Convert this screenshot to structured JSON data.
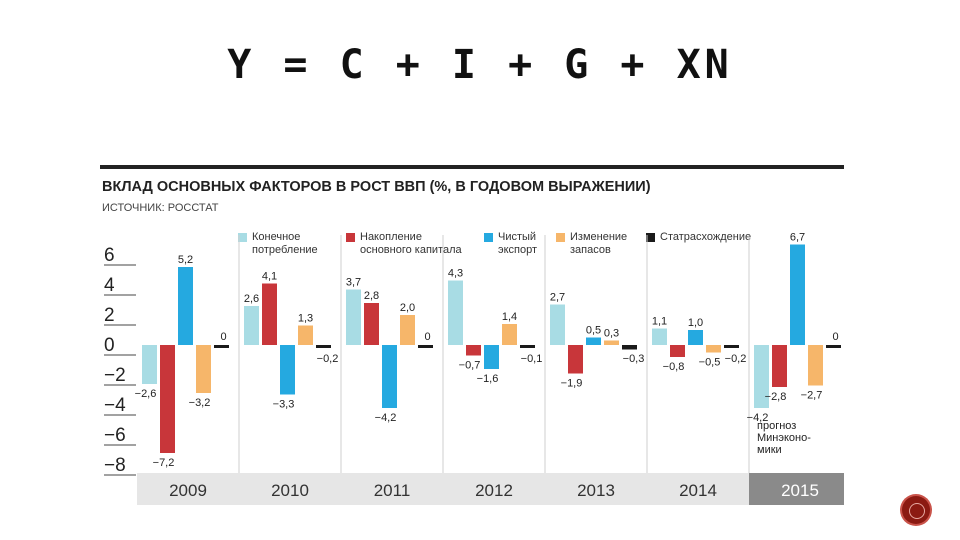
{
  "slide": {
    "title": "Y = C + I + G + XN"
  },
  "colors": {
    "consumption": "#a8dce4",
    "capital": "#c8363a",
    "export": "#25a9e0",
    "inventory": "#f6b66a",
    "discrepancy": "#1a1a1a",
    "footer_bg": "#e6e6e6",
    "footer_highlight": "#8a8a8a"
  },
  "chart_data": {
    "type": "bar",
    "title": "ВКЛАД ОСНОВНЫХ ФАКТОРОВ В РОСТ ВВП (%, В ГОДОВОМ ВЫРАЖЕНИИ)",
    "source": "ИСТОЧНИК: РОССТАТ",
    "categories": [
      "2009",
      "2010",
      "2011",
      "2012",
      "2013",
      "2014",
      "2015"
    ],
    "highlight_category": "2015",
    "ylim": [
      -8.4,
      7.2
    ],
    "yticks": [
      {
        "value": 6,
        "label": "6"
      },
      {
        "value": 4,
        "label": "4"
      },
      {
        "value": 2,
        "label": "2"
      },
      {
        "value": 0,
        "label": "0"
      },
      {
        "value": -2,
        "label": "−2"
      },
      {
        "value": -4,
        "label": "−4"
      },
      {
        "value": -6,
        "label": "−6"
      },
      {
        "value": -8,
        "label": "−8"
      }
    ],
    "legend_position": "top",
    "series": [
      {
        "name": "Конечное потребление",
        "name_lines": [
          "Конечное",
          "потребление"
        ],
        "color_key": "consumption",
        "values": [
          -2.6,
          2.6,
          3.7,
          4.3,
          2.7,
          1.1,
          -4.2
        ],
        "labels": [
          "−2,6",
          "2,6",
          "3,7",
          "4,3",
          "2,7",
          "1,1",
          "−4,2"
        ]
      },
      {
        "name": "Накопление основного капитала",
        "name_lines": [
          "Накопление",
          "основного капитала"
        ],
        "color_key": "capital",
        "values": [
          -7.2,
          4.1,
          2.8,
          -0.7,
          -1.9,
          -0.8,
          -2.8
        ],
        "labels": [
          "−7,2",
          "4,1",
          "2,8",
          "−0,7",
          "−1,9",
          "−0,8",
          "−2,8"
        ]
      },
      {
        "name": "Чистый экспорт",
        "name_lines": [
          "Чистый",
          "экспорт"
        ],
        "color_key": "export",
        "values": [
          5.2,
          -3.3,
          -4.2,
          -1.6,
          0.5,
          1.0,
          6.7
        ],
        "labels": [
          "5,2",
          "−3,3",
          "−4,2",
          "−1,6",
          "0,5",
          "1,0",
          "6,7"
        ]
      },
      {
        "name": "Изменение запасов",
        "name_lines": [
          "Изменение",
          "запасов"
        ],
        "color_key": "inventory",
        "values": [
          -3.2,
          1.3,
          2.0,
          1.4,
          0.3,
          -0.5,
          -2.7
        ],
        "labels": [
          "−3,2",
          "1,3",
          "2,0",
          "1,4",
          "0,3",
          "−0,5",
          "−2,7"
        ]
      },
      {
        "name": "Статрасхождение",
        "name_lines": [
          "Статрасхождение"
        ],
        "color_key": "discrepancy",
        "values": [
          0,
          -0.2,
          0,
          -0.1,
          -0.3,
          -0.2,
          0
        ],
        "labels": [
          "0",
          "−0,2",
          "0",
          "−0,1",
          "−0,3",
          "−0,2",
          "0"
        ]
      }
    ],
    "annotation": {
      "category": "2015",
      "lines": [
        "прогноз",
        "Минэконо-",
        "мики"
      ]
    }
  }
}
